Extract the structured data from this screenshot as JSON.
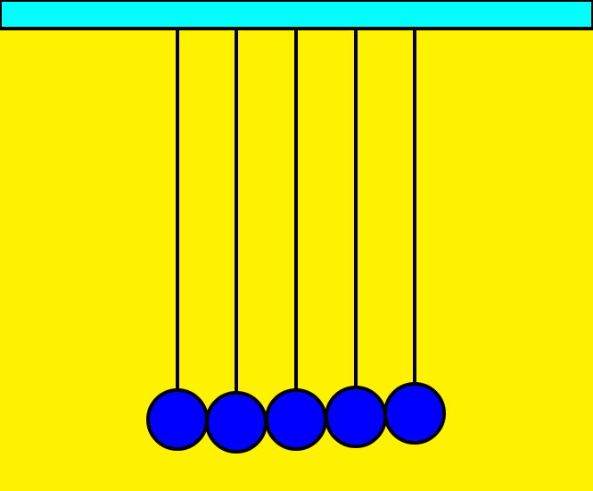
{
  "colors": {
    "background": "#fff200",
    "top_bar": "#00ffff",
    "outline": "#000000",
    "ball": "#0000ff"
  },
  "scene": {
    "type": "newtons-cradle",
    "ball_count": 5
  }
}
